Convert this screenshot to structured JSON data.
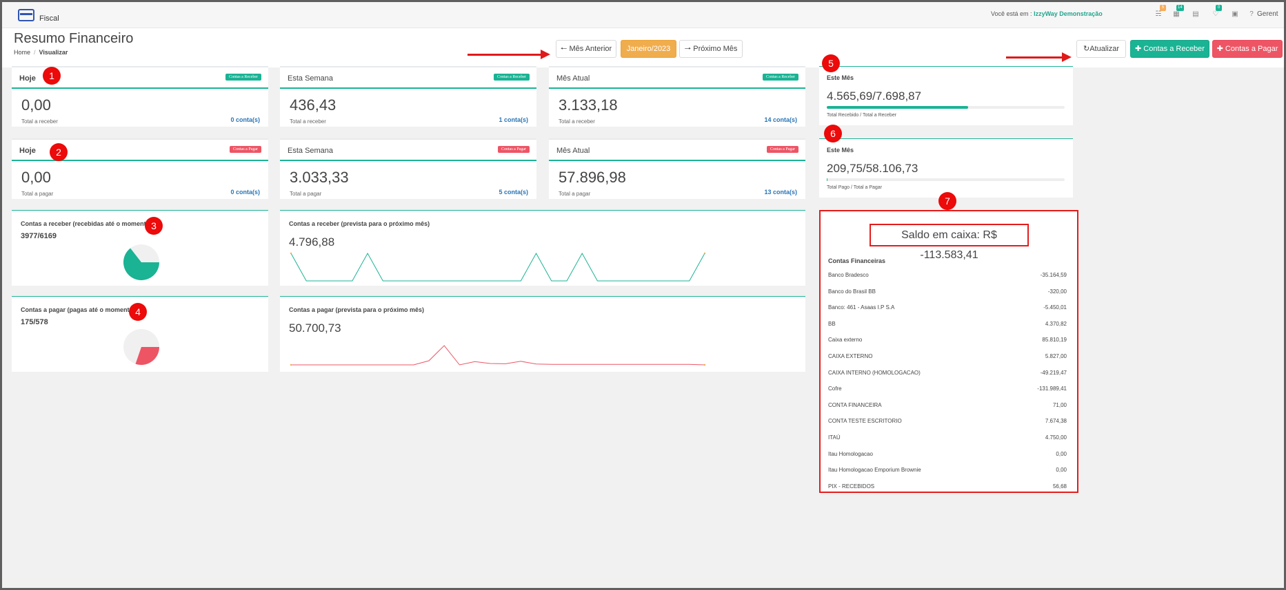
{
  "app": {
    "module": "Fiscal"
  },
  "topbar": {
    "location_prefix": "Você está em :",
    "company": "IzzyWay Demonstração",
    "badges": [
      {
        "icon": "sitemap-icon",
        "count": "5",
        "color": "#f8ac59"
      },
      {
        "icon": "grid-icon",
        "count": "14",
        "color": "#1ab394"
      },
      {
        "icon": "list-icon",
        "count": "",
        "color": ""
      },
      {
        "icon": "bell-icon",
        "count": "0",
        "color": "#1ab394"
      },
      {
        "icon": "calendar-icon",
        "count": "",
        "color": ""
      },
      {
        "icon": "help-icon",
        "count": "",
        "color": ""
      }
    ],
    "user": "Gerent"
  },
  "header": {
    "title": "Resumo Financeiro",
    "breadcrumb": {
      "home": "Home",
      "sep": "/",
      "current": "Visualizar"
    }
  },
  "nav": {
    "prev_label": "Mês Anterior",
    "current_month": "Janeiro/2023",
    "next_label": "Próximo Mês"
  },
  "actions": {
    "refresh_label": "Atualizar",
    "receber_label": "Contas a Receber",
    "pagar_label": "Contas a Pagar"
  },
  "markers": [
    "1",
    "2",
    "3",
    "4",
    "5",
    "6",
    "7"
  ],
  "receber_cards": [
    {
      "title": "Hoje",
      "tag": "Contas a Receber",
      "value": "0,00",
      "sub": "Total a receber",
      "count": "0 conta(s)"
    },
    {
      "title": "Esta Semana",
      "tag": "Contas a Receber",
      "value": "436,43",
      "sub": "Total a receber",
      "count": "1 conta(s)"
    },
    {
      "title": "Mês Atual",
      "tag": "Contas a Receber",
      "value": "3.133,18",
      "sub": "Total a receber",
      "count": "14 conta(s)"
    }
  ],
  "pagar_cards": [
    {
      "title": "Hoje",
      "tag": "Contas a Pagar",
      "value": "0,00",
      "sub": "Total a pagar",
      "count": "0 conta(s)"
    },
    {
      "title": "Esta Semana",
      "tag": "Contas a Pagar",
      "value": "3.033,33",
      "sub": "Total a pagar",
      "count": "5 conta(s)"
    },
    {
      "title": "Mês Atual",
      "tag": "Contas a Pagar",
      "value": "57.896,98",
      "sub": "Total a pagar",
      "count": "13 conta(s)"
    }
  ],
  "pie_receber": {
    "title": "Contas a receber (recebidas até o momento)",
    "value": "3977/6169",
    "fraction": 0.645,
    "color": "#1ab394"
  },
  "pie_pagar": {
    "title": "Contas a pagar (pagas até o momento)",
    "value": "175/578",
    "fraction": 0.303,
    "color": "#ed5565"
  },
  "line_receber": {
    "title": "Contas a receber (prevista para o próximo mês)",
    "value": "4.796,88",
    "color": "#1ab394",
    "points": [
      1,
      0,
      0,
      0,
      0,
      1,
      0,
      0,
      0,
      0,
      0,
      0,
      0,
      0,
      0,
      0,
      1,
      0,
      0,
      1,
      0,
      0,
      0,
      0,
      0,
      0,
      0,
      1
    ]
  },
  "line_pagar": {
    "title": "Contas a pagar (prevista para o próximo mês)",
    "value": "50.700,73",
    "color": "#ed5565",
    "points": [
      0,
      0,
      0,
      0,
      0,
      0,
      0,
      0,
      0,
      0.15,
      0.7,
      0,
      0.12,
      0.05,
      0.04,
      0.13,
      0.03,
      0.02,
      0.02,
      0.02,
      0.02,
      0.02,
      0.02,
      0.02,
      0.02,
      0.02,
      0.02,
      0
    ]
  },
  "este_mes_receber": {
    "title": "Este Mês",
    "value": "4.565,69/7.698,87",
    "progress": 0.593,
    "label": "Total Recebido / Total a Receber"
  },
  "este_mes_pagar": {
    "title": "Este Mês",
    "value": "209,75/58.106,73",
    "progress": 0.004,
    "label": "Total Pago / Total a Pagar"
  },
  "saldo": {
    "text": "Saldo em caixa: R$ -113.583,41"
  },
  "accounts_title": "Contas Financeiras",
  "accounts": [
    {
      "name": "Banco Bradesco",
      "value": "-35.164,59"
    },
    {
      "name": "Banco do Brasil BB",
      "value": "-320,00"
    },
    {
      "name": "Banco: 461 - Asaas I.P S.A",
      "value": "-5.450,01"
    },
    {
      "name": "BB",
      "value": "4.370,82"
    },
    {
      "name": "Caixa externo",
      "value": "85.810,19"
    },
    {
      "name": "CAIXA EXTERNO",
      "value": "5.827,00"
    },
    {
      "name": "CAIXA INTERNO (HOMOLOGACAO)",
      "value": "-49.219,47"
    },
    {
      "name": "Cofre",
      "value": "-131.989,41"
    },
    {
      "name": "CONTA FINANCEIRA",
      "value": "71,00"
    },
    {
      "name": "CONTA TESTE ESCRITORIO",
      "value": "7.674,38"
    },
    {
      "name": "ITAÚ",
      "value": "4.750,00"
    },
    {
      "name": "Itau Homologacao",
      "value": "0,00"
    },
    {
      "name": "Itau Homologacao Emporium Brownie",
      "value": "0,00"
    },
    {
      "name": "PIX - RECEBIDOS",
      "value": "56,68"
    }
  ]
}
